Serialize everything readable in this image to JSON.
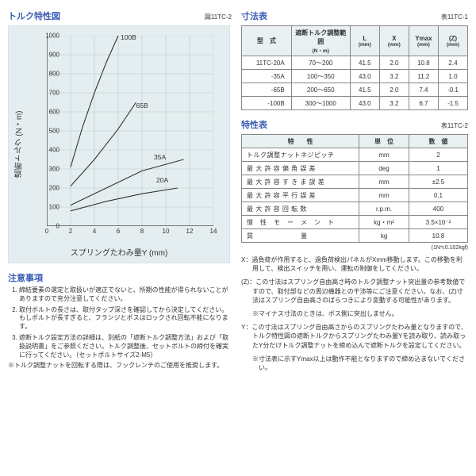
{
  "left": {
    "chart_title": "トルク特性図",
    "chart_ref": "図11TC-2",
    "chart": {
      "type": "line",
      "background_color": "#e4eef0",
      "grid_color": "#b8c8cb",
      "axis_color": "#333333",
      "line_color": "#333333",
      "line_width": 1.1,
      "xlim": [
        0,
        14
      ],
      "ylim": [
        0,
        1000
      ],
      "yticks": [
        0,
        100,
        200,
        300,
        400,
        500,
        600,
        700,
        800,
        900,
        1000
      ],
      "xticks": [
        0,
        2,
        4,
        6,
        8,
        10,
        12,
        14
      ],
      "xlabel": "スプリングたわみ量Y (mm)",
      "ylabel": "遮断トルク (N・m)",
      "label_fontsize": 10,
      "tick_fontsize": 8,
      "series": [
        {
          "name": "100B",
          "points": [
            [
              2,
              310
            ],
            [
              3,
              520
            ],
            [
              4,
              700
            ],
            [
              5,
              860
            ],
            [
              6,
              1000
            ]
          ],
          "label_at": [
            6.2,
            980
          ]
        },
        {
          "name": "65B",
          "points": [
            [
              2,
              210
            ],
            [
              4,
              350
            ],
            [
              6,
              510
            ],
            [
              7.5,
              650
            ]
          ],
          "label_at": [
            7.5,
            620
          ]
        },
        {
          "name": "35A",
          "points": [
            [
              2,
              110
            ],
            [
              5,
              200
            ],
            [
              8,
              290
            ],
            [
              11.5,
              350
            ]
          ],
          "label_at": [
            9.0,
            350
          ]
        },
        {
          "name": "20A",
          "points": [
            [
              2,
              80
            ],
            [
              5,
              130
            ],
            [
              8,
              170
            ],
            [
              11,
              200
            ]
          ],
          "label_at": [
            9.2,
            230
          ]
        }
      ]
    },
    "notes_title": "注意事項",
    "notes": [
      "締結要素の選定と取扱いが適正でないと、所期の性能が得られないことがありますので充分注意してください。",
      "取付ボルトの長さは、取付タップ深さを確認してから決定してください。もしボルトが長すぎると、フランジとボスはロックされ回転不能になります。",
      "遮断トルク設定方法の詳細は、別紙の「遮断トルク調整方法」および「取扱説明書」をご参照ください。トルク調整後、セットボルトの締付を確実に行ってください。（セットボルトサイズ2-M5）"
    ],
    "note_extra": "※トルク調整ナットを回転する際は、フックレンチのご使用を推奨します。"
  },
  "right": {
    "dim_title": "寸法表",
    "dim_ref": "表11TC-1",
    "dim_table": {
      "columns": [
        "型　式",
        "遮断トルク調整範囲",
        "L",
        "X",
        "Ymax",
        "(Z)"
      ],
      "col_units": [
        "",
        "(N・m)",
        "(mm)",
        "(mm)",
        "(mm)",
        "(mm)"
      ],
      "rows": [
        [
          "11TC-20A",
          "70～200",
          "41.5",
          "2.0",
          "10.8",
          "2.4"
        ],
        [
          "-35A",
          "100～350",
          "43.0",
          "3.2",
          "11.2",
          "1.0"
        ],
        [
          "-65B",
          "200～650",
          "41.5",
          "2.0",
          "7.4",
          "-0.1"
        ],
        [
          "-100B",
          "300～1000",
          "43.0",
          "3.2",
          "6.7",
          "-1.5"
        ]
      ],
      "col_widths_pct": [
        22,
        26,
        13,
        13,
        13,
        13
      ]
    },
    "spec_title": "特性表",
    "spec_ref": "表11TC-2",
    "spec_table": {
      "columns": [
        "特　　性",
        "単　位",
        "数　値"
      ],
      "rows": [
        [
          "トルク調整ナットネジピッチ",
          "mm",
          "2"
        ],
        [
          "最 大 許 容 偏 角 誤 差",
          "deg",
          "1"
        ],
        [
          "最 大 許 容 す き ま 誤 差",
          "mm",
          "±2.5"
        ],
        [
          "最 大 許 容 平 行 誤 差",
          "mm",
          "0.1"
        ],
        [
          "最 大 許 容 回 転 数",
          "r.p.m.",
          "400"
        ],
        [
          "慣　性　モ　ー　メ　ン　ト",
          "kg・m²",
          "3.5×10⁻²"
        ],
        [
          "質　　　　　　　量",
          "kg",
          "10.8"
        ]
      ]
    },
    "unit_note": "(1N≒0.102kgf)",
    "rnotes": [
      "X：過負荷が作用すると、過負荷検出パネルがXmm移動します。この移動を利用して、検出スイッチを用い、運転の制御をしてください。",
      "(Z)：この寸法はスプリング自由高さ時のトルク調整ナット突出量の参考数値ですので、取付部などの周辺機器との干渉等にご注意ください。なお、(Z)寸法はスプリング自由高さのばらつきにより変動する可能性があります。",
      "※マイナス寸法のときは、ボス側に突出しません。",
      "Y：この寸法はスプリング自由高さからのスプリングたわみ量となりますので、トルク特性図の遮断トルクからスプリングたわみ量Yを読み取り、読み取ったY分だけトルク調整ナットを締め込んで遮断トルクを設定してください。",
      "※寸法表に示すYmax以上は動作不能となりますので締め込まないでください。"
    ]
  }
}
